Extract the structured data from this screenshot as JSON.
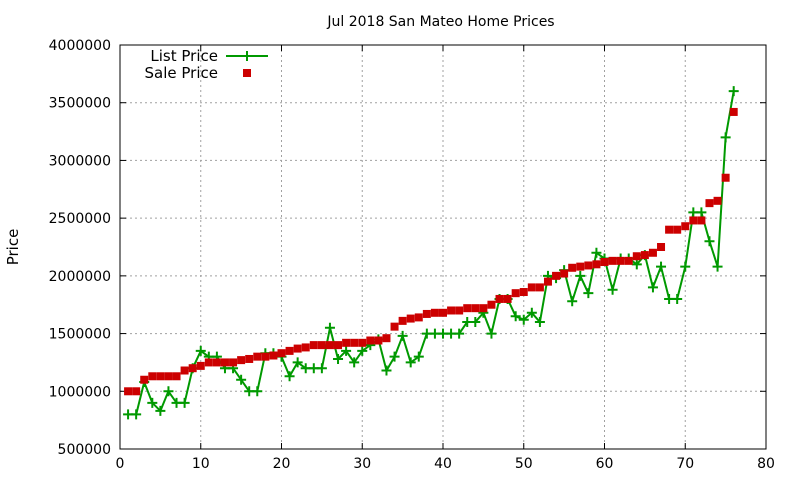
{
  "chart_data": {
    "type": "line",
    "title": "Jul 2018 San Mateo Home Prices",
    "xlabel": "",
    "ylabel": "Price",
    "xlim": [
      0,
      80
    ],
    "ylim": [
      500000,
      4000000
    ],
    "xticks": [
      0,
      10,
      20,
      30,
      40,
      50,
      60,
      70,
      80
    ],
    "yticks": [
      500000,
      1000000,
      1500000,
      2000000,
      2500000,
      3000000,
      3500000,
      4000000
    ],
    "grid": true,
    "legend_position": "top-left",
    "series": [
      {
        "name": "List Price",
        "style": "line-points",
        "marker": "plus",
        "color": "#009900",
        "x": [
          1,
          2,
          3,
          4,
          5,
          6,
          7,
          8,
          9,
          10,
          11,
          12,
          13,
          14,
          15,
          16,
          17,
          18,
          19,
          20,
          21,
          22,
          23,
          24,
          25,
          26,
          27,
          28,
          29,
          30,
          31,
          32,
          33,
          34,
          35,
          36,
          37,
          38,
          39,
          40,
          41,
          42,
          43,
          44,
          45,
          46,
          47,
          48,
          49,
          50,
          51,
          52,
          53,
          54,
          55,
          56,
          57,
          58,
          59,
          60,
          61,
          62,
          63,
          64,
          65,
          66,
          67,
          68,
          69,
          70,
          71,
          72,
          73,
          74,
          75,
          76
        ],
        "y": [
          800000,
          800000,
          1080000,
          900000,
          830000,
          1000000,
          900000,
          900000,
          1200000,
          1350000,
          1300000,
          1300000,
          1200000,
          1200000,
          1100000,
          1000000,
          1000000,
          1330000,
          1330000,
          1300000,
          1130000,
          1250000,
          1200000,
          1200000,
          1200000,
          1550000,
          1280000,
          1350000,
          1250000,
          1350000,
          1400000,
          1450000,
          1180000,
          1300000,
          1480000,
          1250000,
          1300000,
          1500000,
          1500000,
          1500000,
          1500000,
          1500000,
          1600000,
          1600000,
          1680000,
          1500000,
          1800000,
          1800000,
          1650000,
          1620000,
          1680000,
          1600000,
          2000000,
          1980000,
          2050000,
          1780000,
          2000000,
          1850000,
          2200000,
          2150000,
          1880000,
          2150000,
          2150000,
          2100000,
          2180000,
          1900000,
          2080000,
          1800000,
          1800000,
          2080000,
          2550000,
          2550000,
          2300000,
          2080000,
          3200000,
          3600000
        ]
      },
      {
        "name": "Sale Price",
        "style": "points",
        "marker": "square",
        "color": "#cc0000",
        "x": [
          1,
          2,
          3,
          4,
          5,
          6,
          7,
          8,
          9,
          10,
          11,
          12,
          13,
          14,
          15,
          16,
          17,
          18,
          19,
          20,
          21,
          22,
          23,
          24,
          25,
          26,
          27,
          28,
          29,
          30,
          31,
          32,
          33,
          34,
          35,
          36,
          37,
          38,
          39,
          40,
          41,
          42,
          43,
          44,
          45,
          46,
          47,
          48,
          49,
          50,
          51,
          52,
          53,
          54,
          55,
          56,
          57,
          58,
          59,
          60,
          61,
          62,
          63,
          64,
          65,
          66,
          67,
          68,
          69,
          70,
          71,
          72,
          73,
          74,
          75,
          76
        ],
        "y": [
          1000000,
          1000000,
          1100000,
          1130000,
          1130000,
          1130000,
          1130000,
          1180000,
          1200000,
          1220000,
          1250000,
          1250000,
          1250000,
          1250000,
          1270000,
          1280000,
          1300000,
          1300000,
          1310000,
          1330000,
          1350000,
          1370000,
          1380000,
          1400000,
          1400000,
          1400000,
          1400000,
          1420000,
          1420000,
          1420000,
          1440000,
          1440000,
          1460000,
          1560000,
          1610000,
          1630000,
          1640000,
          1670000,
          1680000,
          1680000,
          1700000,
          1700000,
          1720000,
          1720000,
          1720000,
          1750000,
          1800000,
          1800000,
          1850000,
          1860000,
          1900000,
          1900000,
          1950000,
          2000000,
          2020000,
          2070000,
          2080000,
          2090000,
          2100000,
          2120000,
          2130000,
          2130000,
          2130000,
          2170000,
          2180000,
          2200000,
          2250000,
          2400000,
          2400000,
          2430000,
          2480000,
          2480000,
          2630000,
          2650000,
          2850000,
          3420000
        ]
      }
    ]
  }
}
